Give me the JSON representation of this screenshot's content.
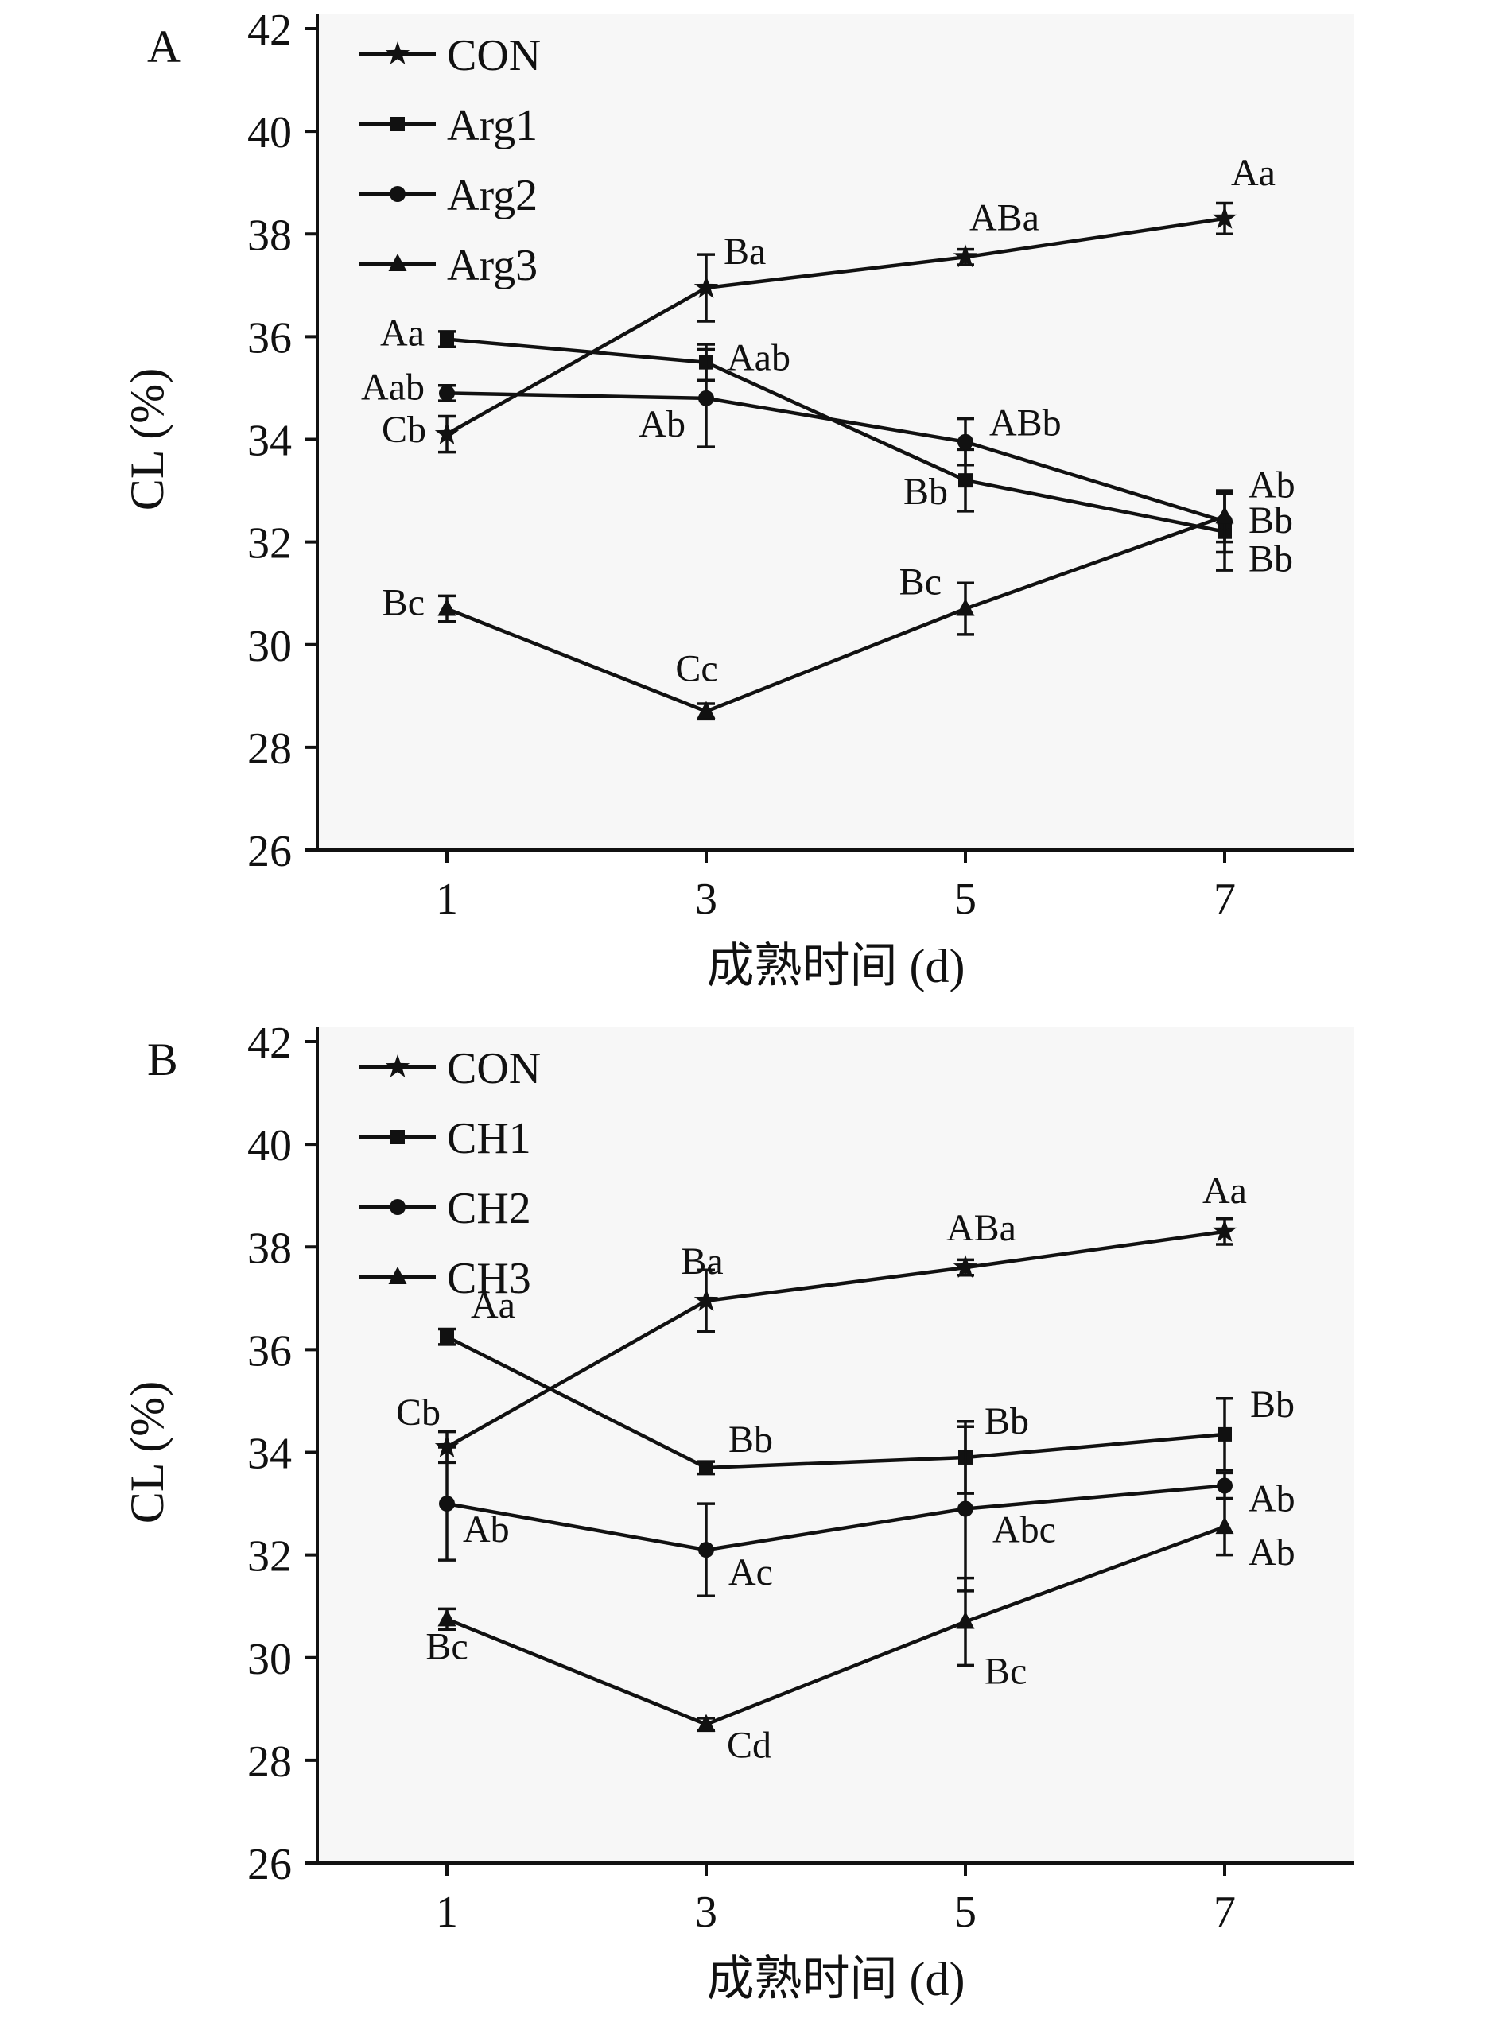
{
  "figure": {
    "background": "#ffffff",
    "ink": "#111111",
    "plot_fill": "#f7f7f7"
  },
  "chart_data": [
    {
      "panel_label": "A",
      "type": "line",
      "xlabel": "成熟时间 (d)",
      "ylabel": "CL (%)",
      "xlim": [
        0,
        8
      ],
      "ylim": [
        26,
        42
      ],
      "x_ticks": [
        1,
        3,
        5,
        7
      ],
      "y_ticks": [
        26,
        28,
        30,
        32,
        34,
        36,
        38,
        40,
        42
      ],
      "grid": false,
      "legend_position": "top-left",
      "x": [
        1,
        3,
        5,
        7
      ],
      "series": [
        {
          "name": "CON",
          "marker": "star",
          "values": [
            34.1,
            36.95,
            37.55,
            38.3
          ],
          "errors": [
            0.35,
            0.65,
            0.15,
            0.3
          ],
          "point_labels": [
            {
              "text": "Cb",
              "dx": -26,
              "dy": 10,
              "anchor": "end"
            },
            {
              "text": "Ba",
              "dx": 22,
              "dy": -30,
              "anchor": "start"
            },
            {
              "text": "ABa",
              "dx": 5,
              "dy": -34,
              "anchor": "start"
            },
            {
              "text": "Aa",
              "dx": 8,
              "dy": -42,
              "anchor": "start"
            }
          ]
        },
        {
          "name": "Arg1",
          "marker": "square",
          "values": [
            35.95,
            35.5,
            33.2,
            32.2
          ],
          "errors": [
            0.15,
            0.35,
            0.6,
            0.75
          ],
          "point_labels": [
            {
              "text": "Aa",
              "dx": -28,
              "dy": 8,
              "anchor": "end"
            },
            {
              "text": "Aab",
              "dx": 26,
              "dy": 10,
              "anchor": "start"
            },
            {
              "text": "Bb",
              "dx": -22,
              "dy": 30,
              "anchor": "end"
            },
            {
              "text": "Bb",
              "dx": 30,
              "dy": 50,
              "anchor": "start"
            }
          ]
        },
        {
          "name": "Arg2",
          "marker": "circle",
          "values": [
            34.9,
            34.8,
            33.95,
            32.4
          ],
          "errors": [
            0.15,
            0.95,
            0.45,
            0.6
          ],
          "point_labels": [
            {
              "text": "Aab",
              "dx": -28,
              "dy": 8,
              "anchor": "end"
            },
            {
              "text": "Ab",
              "dx": -26,
              "dy": 48,
              "anchor": "end"
            },
            {
              "text": "ABb",
              "dx": 30,
              "dy": -8,
              "anchor": "start"
            },
            {
              "text": "Bb",
              "dx": 30,
              "dy": 14,
              "anchor": "start"
            }
          ]
        },
        {
          "name": "Arg3",
          "marker": "triangle",
          "values": [
            30.7,
            28.7,
            30.7,
            32.5
          ],
          "errors": [
            0.25,
            0.15,
            0.5,
            0.5
          ],
          "point_labels": [
            {
              "text": "Bc",
              "dx": -28,
              "dy": 8,
              "anchor": "end"
            },
            {
              "text": "Cc",
              "dx": -12,
              "dy": -38,
              "anchor": "middle"
            },
            {
              "text": "Bc",
              "dx": -30,
              "dy": -18,
              "anchor": "end"
            },
            {
              "text": "Ab",
              "dx": 30,
              "dy": -24,
              "anchor": "start"
            }
          ]
        }
      ]
    },
    {
      "panel_label": "B",
      "type": "line",
      "xlabel": "成熟时间 (d)",
      "ylabel": "CL (%)",
      "xlim": [
        0,
        8
      ],
      "ylim": [
        26,
        42
      ],
      "x_ticks": [
        1,
        3,
        5,
        7
      ],
      "y_ticks": [
        26,
        28,
        30,
        32,
        34,
        36,
        38,
        40,
        42
      ],
      "grid": false,
      "legend_position": "top-left",
      "x": [
        1,
        3,
        5,
        7
      ],
      "series": [
        {
          "name": "CON",
          "marker": "star",
          "values": [
            34.1,
            36.95,
            37.6,
            38.3
          ],
          "errors": [
            0.3,
            0.6,
            0.15,
            0.25
          ],
          "point_labels": [
            {
              "text": "Cb",
              "dx": -8,
              "dy": -28,
              "anchor": "end"
            },
            {
              "text": "Ba",
              "dx": -5,
              "dy": -34,
              "anchor": "middle"
            },
            {
              "text": "ABa",
              "dx": 20,
              "dy": -34,
              "anchor": "middle"
            },
            {
              "text": "Aa",
              "dx": 0,
              "dy": -36,
              "anchor": "middle"
            }
          ]
        },
        {
          "name": "CH1",
          "marker": "square",
          "values": [
            36.25,
            33.7,
            33.9,
            34.35
          ],
          "errors": [
            0.15,
            0.12,
            0.7,
            0.7
          ],
          "point_labels": [
            {
              "text": "Aa",
              "dx": 30,
              "dy": -24,
              "anchor": "start"
            },
            {
              "text": "Bb",
              "dx": 28,
              "dy": -20,
              "anchor": "start"
            },
            {
              "text": "Bb",
              "dx": 24,
              "dy": -30,
              "anchor": "start"
            },
            {
              "text": "Bb",
              "dx": 32,
              "dy": -22,
              "anchor": "start"
            }
          ]
        },
        {
          "name": "CH2",
          "marker": "circle",
          "values": [
            33.0,
            32.1,
            32.9,
            33.35
          ],
          "errors": [
            1.1,
            0.9,
            1.6,
            0.25
          ],
          "point_labels": [
            {
              "text": "Ab",
              "dx": 20,
              "dy": 48,
              "anchor": "start"
            },
            {
              "text": "Ac",
              "dx": 28,
              "dy": 44,
              "anchor": "start"
            },
            {
              "text": "Abc",
              "dx": 34,
              "dy": 42,
              "anchor": "start"
            },
            {
              "text": "Ab",
              "dx": 30,
              "dy": 32,
              "anchor": "start"
            }
          ]
        },
        {
          "name": "CH3",
          "marker": "triangle",
          "values": [
            30.75,
            28.7,
            30.7,
            32.55
          ],
          "errors": [
            0.2,
            0.12,
            0.85,
            0.55
          ],
          "point_labels": [
            {
              "text": "Bc",
              "dx": 0,
              "dy": 50,
              "anchor": "middle"
            },
            {
              "text": "Cd",
              "dx": 26,
              "dy": 42,
              "anchor": "start"
            },
            {
              "text": "Bc",
              "dx": 24,
              "dy": 78,
              "anchor": "start"
            },
            {
              "text": "Ab",
              "dx": 30,
              "dy": 48,
              "anchor": "start"
            }
          ]
        }
      ]
    }
  ]
}
